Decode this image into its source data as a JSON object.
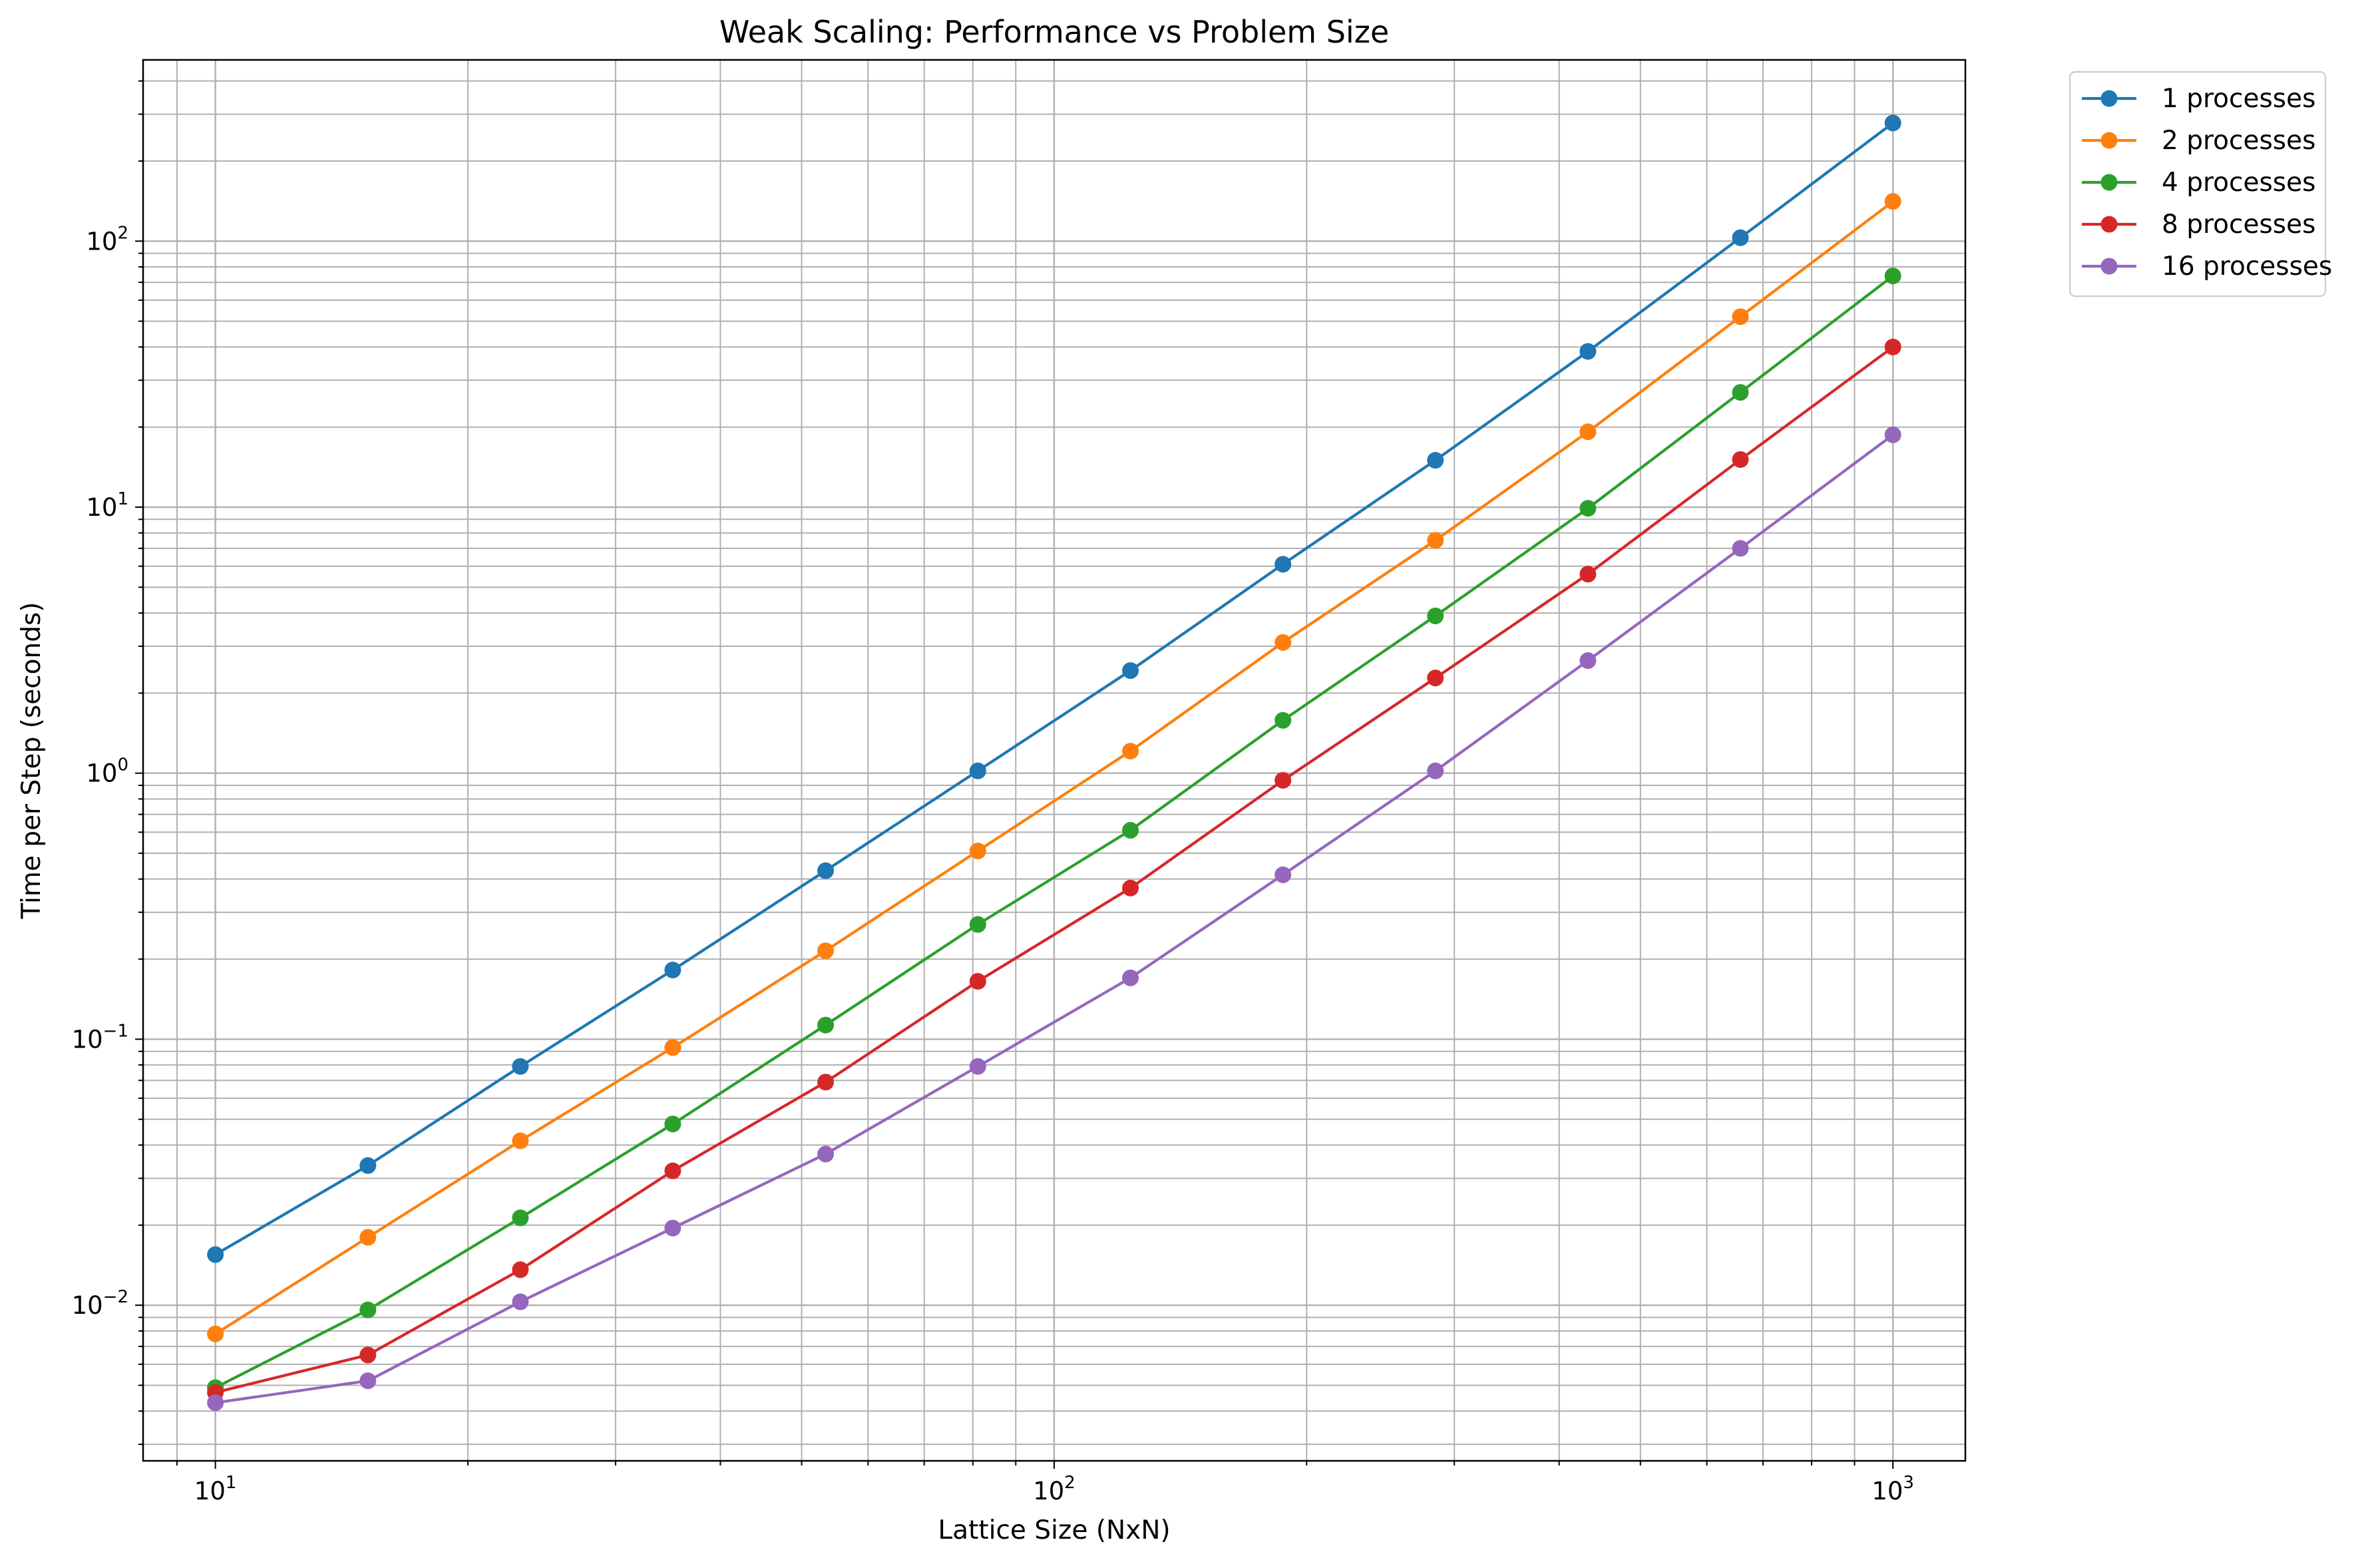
{
  "chart_data": {
    "type": "line",
    "title": "Weak Scaling: Performance vs Problem Size",
    "xlabel": "Lattice Size (NxN)",
    "ylabel": "Time per Step (seconds)",
    "xscale": "log",
    "yscale": "log",
    "xlim": [
      8.2,
      1220
    ],
    "ylim": [
      0.0026,
      480
    ],
    "grid": true,
    "grid_minor": true,
    "legend_placement": "outside upper right",
    "x": [
      10,
      15.2,
      23.1,
      35.1,
      53.4,
      81.1,
      123.3,
      187.4,
      284.8,
      432.9,
      657.9,
      1000
    ],
    "x_ticks": [
      {
        "value": 10,
        "base": "10",
        "exp": "1"
      },
      {
        "value": 100,
        "base": "10",
        "exp": "2"
      },
      {
        "value": 1000,
        "base": "10",
        "exp": "3"
      }
    ],
    "y_ticks": [
      {
        "value": 0.01,
        "base": "10",
        "exp": "−2"
      },
      {
        "value": 0.1,
        "base": "10",
        "exp": "−1"
      },
      {
        "value": 1,
        "base": "10",
        "exp": "0"
      },
      {
        "value": 10,
        "base": "10",
        "exp": "1"
      },
      {
        "value": 100,
        "base": "10",
        "exp": "2"
      }
    ],
    "series": [
      {
        "name": "1 processes",
        "color": "#1f77b4",
        "values": [
          0.0155,
          0.0335,
          0.079,
          0.182,
          0.43,
          1.02,
          2.43,
          6.1,
          15.0,
          38.5,
          103,
          278
        ]
      },
      {
        "name": "2 processes",
        "color": "#ff7f0e",
        "values": [
          0.0078,
          0.018,
          0.0415,
          0.093,
          0.215,
          0.51,
          1.21,
          3.1,
          7.5,
          19.2,
          52,
          141
        ]
      },
      {
        "name": "4 processes",
        "color": "#2ca02c",
        "values": [
          0.0049,
          0.0096,
          0.0213,
          0.048,
          0.113,
          0.27,
          0.61,
          1.58,
          3.9,
          9.9,
          27,
          74
        ]
      },
      {
        "name": "8 processes",
        "color": "#d62728",
        "values": [
          0.0047,
          0.0065,
          0.0136,
          0.032,
          0.069,
          0.165,
          0.37,
          0.94,
          2.28,
          5.6,
          15.1,
          40
        ]
      },
      {
        "name": "16 processes",
        "color": "#9467bd",
        "values": [
          0.0043,
          0.0052,
          0.0103,
          0.0195,
          0.037,
          0.079,
          0.17,
          0.415,
          1.02,
          2.65,
          7.0,
          18.7
        ]
      }
    ]
  }
}
